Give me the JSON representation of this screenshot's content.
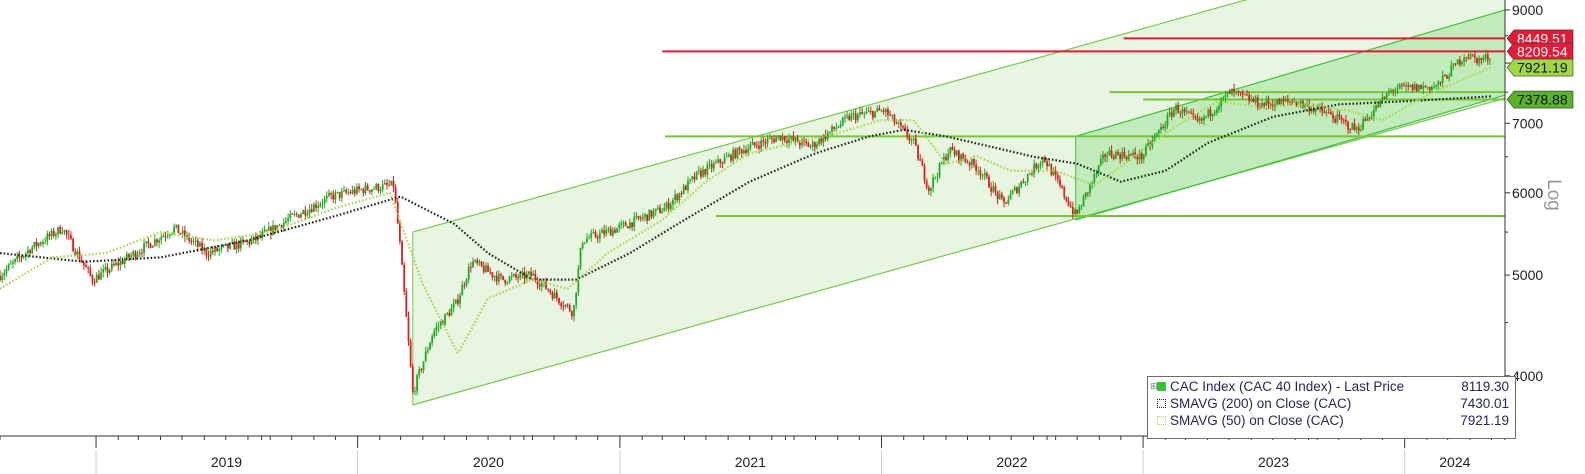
{
  "chart_data": {
    "type": "line",
    "title": "",
    "xlabel": "",
    "ylabel": "Log",
    "y_scale": "log",
    "ylim": [
      3500,
      9200
    ],
    "y_ticks": [
      4000,
      5000,
      6000,
      7000,
      8000,
      9000
    ],
    "x_ticks": [
      "2019",
      "2020",
      "2021",
      "2022",
      "2023",
      "2024"
    ],
    "x_range": [
      "2018-08-20",
      "2024-05-20"
    ],
    "grid": false,
    "legend_position": "bottom-right",
    "series": [
      {
        "name": "CAC Index (CAC 40 Index) - Last Price",
        "style": "candlestick",
        "last_value": 8119.3,
        "x": [
          "2018-08-20",
          "2018-10-01",
          "2018-11-15",
          "2018-12-27",
          "2019-02-15",
          "2019-04-20",
          "2019-06-05",
          "2019-08-10",
          "2019-09-25",
          "2019-11-25",
          "2020-01-10",
          "2020-02-20",
          "2020-02-28",
          "2020-03-18",
          "2020-04-15",
          "2020-05-18",
          "2020-06-08",
          "2020-07-20",
          "2020-09-01",
          "2020-10-28",
          "2020-11-09",
          "2020-12-30",
          "2021-03-05",
          "2021-04-20",
          "2021-06-20",
          "2021-08-13",
          "2021-09-25",
          "2021-11-18",
          "2022-01-05",
          "2022-02-15",
          "2022-03-08",
          "2022-04-05",
          "2022-05-15",
          "2022-06-20",
          "2022-08-15",
          "2022-09-29",
          "2022-11-10",
          "2022-12-30",
          "2023-02-15",
          "2023-03-20",
          "2023-05-03",
          "2023-06-15",
          "2023-08-01",
          "2023-09-15",
          "2023-10-26",
          "2023-12-15",
          "2024-02-15",
          "2024-03-25",
          "2024-04-15",
          "2024-04-30"
        ],
        "values": [
          5000,
          5300,
          5550,
          4950,
          5200,
          5550,
          5250,
          5400,
          5650,
          5950,
          6050,
          6100,
          5450,
          3850,
          4400,
          4700,
          5150,
          4950,
          5000,
          4600,
          5400,
          5550,
          5800,
          6250,
          6600,
          6800,
          6650,
          7100,
          7200,
          6700,
          6050,
          6600,
          6350,
          5850,
          6500,
          5700,
          6550,
          6500,
          7250,
          7000,
          7500,
          7300,
          7350,
          7150,
          6900,
          7550,
          7600,
          8150,
          8050,
          8119.3
        ]
      },
      {
        "name": "SMAVG (200) on Close (CAC)",
        "style": "dotted",
        "last_value": 7430.01,
        "x": [
          "2018-08-20",
          "2018-12-15",
          "2019-04-01",
          "2019-08-01",
          "2019-12-01",
          "2020-03-01",
          "2020-05-15",
          "2020-07-01",
          "2020-09-01",
          "2020-11-01",
          "2021-01-15",
          "2021-04-01",
          "2021-07-01",
          "2021-10-01",
          "2021-12-15",
          "2022-02-01",
          "2022-04-01",
          "2022-06-01",
          "2022-08-01",
          "2022-10-01",
          "2022-12-01",
          "2023-02-01",
          "2023-04-01",
          "2023-07-01",
          "2023-10-01",
          "2024-01-01",
          "2024-04-30"
        ],
        "values": [
          5250,
          5150,
          5200,
          5400,
          5700,
          5950,
          5600,
          5250,
          4950,
          4950,
          5250,
          5650,
          6150,
          6550,
          6800,
          6900,
          6800,
          6650,
          6500,
          6400,
          6150,
          6300,
          6700,
          7100,
          7300,
          7350,
          7430.01
        ]
      },
      {
        "name": "SMAVG (50) on Close (CAC)",
        "style": "dotted",
        "last_value": 7921.19,
        "x": [
          "2018-08-20",
          "2018-11-01",
          "2019-01-15",
          "2019-04-01",
          "2019-06-15",
          "2019-09-01",
          "2019-12-01",
          "2020-02-15",
          "2020-04-01",
          "2020-05-20",
          "2020-07-01",
          "2020-09-01",
          "2020-10-20",
          "2020-12-15",
          "2021-03-01",
          "2021-05-01",
          "2021-07-01",
          "2021-09-01",
          "2021-11-01",
          "2022-01-01",
          "2022-02-15",
          "2022-04-01",
          "2022-05-15",
          "2022-07-01",
          "2022-09-01",
          "2022-10-25",
          "2022-12-20",
          "2023-02-15",
          "2023-04-15",
          "2023-06-15",
          "2023-08-15",
          "2023-10-15",
          "2023-12-01",
          "2024-02-01",
          "2024-04-30"
        ],
        "values": [
          4850,
          5200,
          5250,
          5500,
          5400,
          5500,
          5800,
          6000,
          4900,
          4200,
          4750,
          4950,
          4850,
          5250,
          5650,
          6150,
          6550,
          6700,
          6850,
          7050,
          7050,
          6400,
          6500,
          6300,
          6300,
          6100,
          6500,
          6950,
          7350,
          7250,
          7300,
          7200,
          7050,
          7450,
          7921.19
        ]
      }
    ],
    "price_tags": [
      {
        "label": "8449.51",
        "value": 8449.51,
        "color": "#e41b38"
      },
      {
        "label": "8209.54",
        "value": 8209.54,
        "color": "#e41b38"
      },
      {
        "label": "7921.19",
        "value": 7921.19,
        "color": "#9fd843"
      },
      {
        "label": "7378.88",
        "value": 7378.88,
        "color": "#58b32b"
      }
    ],
    "horizontal_lines": [
      {
        "value": 8449.51,
        "from": "2022-12-05",
        "color": "#e41b38"
      },
      {
        "value": 8209.54,
        "from": "2021-03-01",
        "color": "#e41b38"
      },
      {
        "value": 7500,
        "from": "2022-11-15",
        "color": "#77c43a"
      },
      {
        "value": 7378.88,
        "from": "2023-01-01",
        "color": "#77c43a"
      },
      {
        "value": 6800,
        "from": "2021-03-05",
        "color": "#77c43a"
      },
      {
        "value": 5700,
        "from": "2021-05-15",
        "color": "#77c43a"
      }
    ],
    "channels": [
      {
        "name": "",
        "start": "2020-03-18",
        "end": "2024-05-20",
        "lower": [
          3750,
          7400
        ],
        "upper": [
          5500,
          10800
        ],
        "color": "#78c84b"
      },
      {
        "name": "",
        "start": "2022-09-29",
        "end": "2024-05-20",
        "lower": [
          5650,
          7450
        ],
        "upper": [
          6800,
          9000
        ],
        "color": "#3bc23b"
      }
    ]
  },
  "legend": {
    "entries": [
      {
        "label": "CAC Index (CAC 40 Index) - Last Price",
        "value": "8119.30"
      },
      {
        "label": "SMAVG (200)  on Close (CAC)",
        "value": "7430.01"
      },
      {
        "label": "SMAVG (50)  on Close (CAC)",
        "value": "7921.19"
      }
    ]
  }
}
